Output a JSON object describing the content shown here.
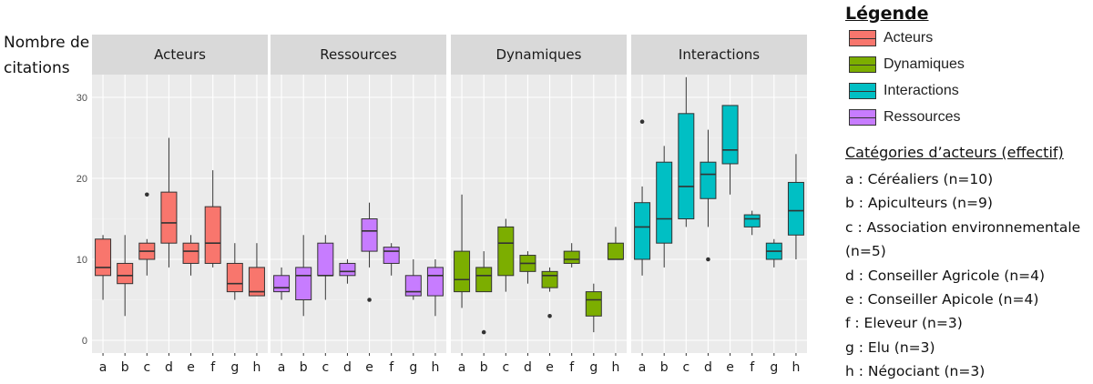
{
  "y_axis_label": [
    "Nombre de",
    "citations"
  ],
  "legend": {
    "title": "Légende",
    "entries": [
      {
        "label": "Acteurs",
        "color": "#F8766D"
      },
      {
        "label": "Dynamiques",
        "color": "#7CAE00"
      },
      {
        "label": "Interactions",
        "color": "#00BFC4"
      },
      {
        "label": "Ressources",
        "color": "#C77CFF"
      }
    ]
  },
  "categories_legend": {
    "title": "Catégories d’acteurs (effectif)",
    "items": [
      "a : Céréaliers (n=10)",
      "b : Apiculteurs (n=9)",
      "c : Association environnementale (n=5)",
      "d : Conseiller Agricole (n=4)",
      "e : Conseiller Apicole (n=4)",
      "f : Eleveur (n=3)",
      "g : Elu (n=3)",
      "h : Négociant (n=3)"
    ]
  },
  "chart_data": {
    "type": "boxplot",
    "categories": [
      "a",
      "b",
      "c",
      "d",
      "e",
      "f",
      "g",
      "h"
    ],
    "ylim": [
      -1,
      32.5
    ],
    "yticks": [
      0,
      10,
      20,
      30
    ],
    "grid": true,
    "panels": [
      {
        "name": "Acteurs",
        "color": "#F8766D",
        "boxes": [
          {
            "min": 5,
            "q1": 8,
            "median": 9,
            "q3": 12.5,
            "max": 13,
            "outliers": []
          },
          {
            "min": 3,
            "q1": 7,
            "median": 8,
            "q3": 9.5,
            "max": 13,
            "outliers": []
          },
          {
            "min": 8,
            "q1": 10,
            "median": 11,
            "q3": 12,
            "max": 12.5,
            "outliers": [
              18
            ]
          },
          {
            "min": 9,
            "q1": 12,
            "median": 14.5,
            "q3": 18.3,
            "max": 25,
            "outliers": []
          },
          {
            "min": 8,
            "q1": 9.5,
            "median": 11,
            "q3": 12,
            "max": 13,
            "outliers": []
          },
          {
            "min": 9,
            "q1": 9.5,
            "median": 12,
            "q3": 16.5,
            "max": 21,
            "outliers": []
          },
          {
            "min": 5,
            "q1": 6,
            "median": 7,
            "q3": 9.5,
            "max": 12,
            "outliers": []
          },
          {
            "min": 5.5,
            "q1": 5.5,
            "median": 6,
            "q3": 9,
            "max": 12,
            "outliers": []
          }
        ]
      },
      {
        "name": "Ressources",
        "color": "#C77CFF",
        "boxes": [
          {
            "min": 5,
            "q1": 6,
            "median": 6.5,
            "q3": 8,
            "max": 9,
            "outliers": []
          },
          {
            "min": 3,
            "q1": 5,
            "median": 8,
            "q3": 9,
            "max": 13,
            "outliers": []
          },
          {
            "min": 5,
            "q1": 8,
            "median": 8,
            "q3": 12,
            "max": 13,
            "outliers": []
          },
          {
            "min": 7,
            "q1": 8,
            "median": 8.5,
            "q3": 9.5,
            "max": 10,
            "outliers": []
          },
          {
            "min": 9,
            "q1": 11,
            "median": 13.5,
            "q3": 15,
            "max": 17,
            "outliers": [
              5
            ]
          },
          {
            "min": 8,
            "q1": 9.5,
            "median": 11,
            "q3": 11.5,
            "max": 12,
            "outliers": []
          },
          {
            "min": 5,
            "q1": 5.5,
            "median": 6,
            "q3": 8,
            "max": 10,
            "outliers": []
          },
          {
            "min": 3,
            "q1": 5.5,
            "median": 8,
            "q3": 9,
            "max": 10,
            "outliers": []
          }
        ]
      },
      {
        "name": "Dynamiques",
        "color": "#7CAE00",
        "boxes": [
          {
            "min": 4,
            "q1": 6,
            "median": 7.5,
            "q3": 11,
            "max": 18,
            "outliers": []
          },
          {
            "min": 6,
            "q1": 6,
            "median": 8,
            "q3": 9,
            "max": 11,
            "outliers": [
              1
            ]
          },
          {
            "min": 6,
            "q1": 8,
            "median": 12,
            "q3": 14,
            "max": 15,
            "outliers": []
          },
          {
            "min": 7,
            "q1": 8.5,
            "median": 9.5,
            "q3": 10.5,
            "max": 11,
            "outliers": []
          },
          {
            "min": 6,
            "q1": 6.5,
            "median": 8,
            "q3": 8.5,
            "max": 9,
            "outliers": [
              3
            ]
          },
          {
            "min": 9,
            "q1": 9.5,
            "median": 10,
            "q3": 11,
            "max": 12,
            "outliers": []
          },
          {
            "min": 1,
            "q1": 3,
            "median": 5,
            "q3": 6,
            "max": 7,
            "outliers": []
          },
          {
            "min": 10,
            "q1": 10,
            "median": 10,
            "q3": 12,
            "max": 14,
            "outliers": []
          }
        ]
      },
      {
        "name": "Interactions",
        "color": "#00BFC4",
        "boxes": [
          {
            "min": 8,
            "q1": 10,
            "median": 14,
            "q3": 17,
            "max": 19,
            "outliers": [
              27
            ]
          },
          {
            "min": 9,
            "q1": 12,
            "median": 15,
            "q3": 22,
            "max": 24,
            "outliers": []
          },
          {
            "min": 14,
            "q1": 15,
            "median": 19,
            "q3": 28,
            "max": 32.5,
            "outliers": []
          },
          {
            "min": 14,
            "q1": 17.5,
            "median": 20.5,
            "q3": 22,
            "max": 26,
            "outliers": [
              10
            ]
          },
          {
            "min": 18,
            "q1": 21.8,
            "median": 23.5,
            "q3": 29,
            "max": 29,
            "outliers": []
          },
          {
            "min": 13,
            "q1": 14,
            "median": 15,
            "q3": 15.5,
            "max": 16,
            "outliers": []
          },
          {
            "min": 9,
            "q1": 10,
            "median": 11,
            "q3": 12,
            "max": 12.5,
            "outliers": []
          },
          {
            "min": 10,
            "q1": 13,
            "median": 16,
            "q3": 19.5,
            "max": 23,
            "outliers": []
          }
        ]
      }
    ]
  }
}
